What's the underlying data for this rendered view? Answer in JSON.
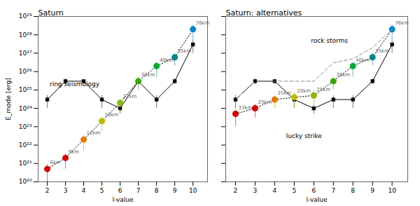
{
  "chart_data": [
    {
      "type": "line",
      "title": "Saturn",
      "xlabel": "l-value",
      "ylabel": "E_mode [erg]",
      "log": "y",
      "x": [
        2,
        3,
        4,
        5,
        6,
        7,
        8,
        9,
        10
      ],
      "xlim": [
        1.5,
        10.8
      ],
      "xticks": [
        2,
        3,
        4,
        5,
        6,
        7,
        8,
        9,
        10
      ],
      "ylim": [
        1e+20,
        1e+29
      ],
      "yticks": [
        {
          "value": 1e+20,
          "label": "10²⁰"
        },
        {
          "value": 1e+21,
          "label": "10²¹"
        },
        {
          "value": 1e+22,
          "label": "10²²"
        },
        {
          "value": 1e+23,
          "label": "10²³"
        },
        {
          "value": 1e+24,
          "label": "10²⁴"
        },
        {
          "value": 1e+25,
          "label": "10²⁵"
        },
        {
          "value": 1e+26,
          "label": "10²⁶"
        },
        {
          "value": 1e+27,
          "label": "10²⁷"
        },
        {
          "value": 1e+28,
          "label": "10²⁸"
        },
        {
          "value": 1e+29,
          "label": "10²⁹"
        }
      ],
      "series": [
        {
          "color": "black",
          "marker": "square",
          "line_style": "solid",
          "values": [
            3e+24,
            3e+25,
            3e+25,
            3e+24,
            1e+24,
            3e+25,
            3e+24,
            3e+25,
            3e+27
          ],
          "error_low": [
            2e+24,
            1e+25,
            5e+24,
            2e+24,
            5e+23,
            1e+25,
            2e+24,
            1e+25,
            2e+27
          ],
          "error_high": [
            2e+24,
            1e+25,
            5e+24,
            2e+24,
            5e+23,
            1e+25,
            2e+24,
            1e+25,
            2e+27
          ]
        },
        {
          "colors": [
            "#dd0000",
            "#dd0000",
            "#ee7700",
            "#bbbb00",
            "#88bb00",
            "#33aa00",
            "#00aa33",
            "#008888",
            "#0088cc"
          ],
          "marker": "circle",
          "line_style": "dotted",
          "values": [
            5e+20,
            2e+21,
            2e+22,
            2e+23,
            2e+24,
            3e+25,
            2e+26,
            6e+26,
            2e+28
          ],
          "error_low": [
            4e+20,
            1.5e+21,
            1.5e+22,
            1.5e+23,
            1.5e+24,
            2e+25,
            1.5e+26,
            4e+26,
            1.5e+28
          ],
          "error_high": [
            4e+20,
            1.5e+21,
            1.5e+22,
            1.5e+23,
            1.5e+24,
            2e+25,
            1.5e+26,
            4e+26,
            1.5e+28
          ],
          "labels": [
            "6km",
            "9km",
            "12km",
            "16km",
            "22km",
            "30km",
            "40km",
            "55km",
            "76km"
          ]
        }
      ],
      "annotations": [
        {
          "text": "ring seismology",
          "x": 3.5,
          "y": 2e+25
        }
      ]
    },
    {
      "type": "line",
      "title": "Saturn: alternatives",
      "xlabel": "l-value",
      "log": "y",
      "tick_labels": "x",
      "x": [
        2,
        3,
        4,
        5,
        6,
        7,
        8,
        9,
        10
      ],
      "xlim": [
        1.5,
        10.8
      ],
      "xticks": [
        2,
        3,
        4,
        5,
        6,
        7,
        8,
        9,
        10
      ],
      "ylim": [
        1e+20,
        1e+29
      ],
      "yticks": [
        1e+20,
        1e+21,
        1e+22,
        1e+23,
        1e+24,
        1e+25,
        1e+26,
        1e+27,
        1e+28,
        1e+29
      ],
      "series": [
        {
          "color": "black",
          "marker": "square",
          "line_style": "solid",
          "values": [
            3e+24,
            3e+25,
            3e+25,
            3e+24,
            1e+24,
            3e+24,
            3e+24,
            3e+25,
            3e+27
          ],
          "error_low": [
            2e+24,
            1e+25,
            5e+24,
            2e+24,
            5e+23,
            2e+24,
            2e+24,
            1e+25,
            2e+27
          ],
          "error_high": [
            2e+24,
            1e+25,
            5e+24,
            2e+24,
            5e+23,
            2e+24,
            2e+24,
            1e+25,
            2e+27
          ]
        },
        {
          "colors": [
            "#dd0000",
            "#dd0000",
            "#ee7700",
            "#bbbb00",
            "#88bb00",
            "#33aa00",
            "#00aa33",
            "#008888",
            "#0088cc"
          ],
          "marker": "circle",
          "line_style": "dotted",
          "values": [
            5e+23,
            1e+24,
            3e+24,
            4e+24,
            5e+24,
            3e+25,
            2e+26,
            6e+26,
            2e+28
          ],
          "error_low": [
            4e+23,
            7e+23,
            2e+24,
            3e+24,
            4e+24,
            2e+25,
            1.5e+26,
            4e+26,
            1.5e+28
          ],
          "error_high": [
            4e+23,
            7e+23,
            2e+24,
            3e+24,
            4e+24,
            2e+25,
            1.5e+26,
            4e+26,
            1.5e+28
          ],
          "labels": [
            "33km",
            "25km",
            "25km",
            "20km",
            "25km",
            "30km",
            "40km",
            "55km",
            "76km"
          ]
        },
        {
          "color": "#888888",
          "marker": "none",
          "line_style": "dashed",
          "values": [
            3e+24,
            3e+25,
            3e+25,
            3e+25,
            3e+25,
            3e+26,
            5e+26,
            2e+27,
            2e+28
          ]
        }
      ],
      "annotations": [
        {
          "text": "rock storms",
          "x": 6.8,
          "y": 5e+27
        },
        {
          "text": "lucky strike",
          "x": 5.5,
          "y": 3e+22
        }
      ]
    }
  ]
}
